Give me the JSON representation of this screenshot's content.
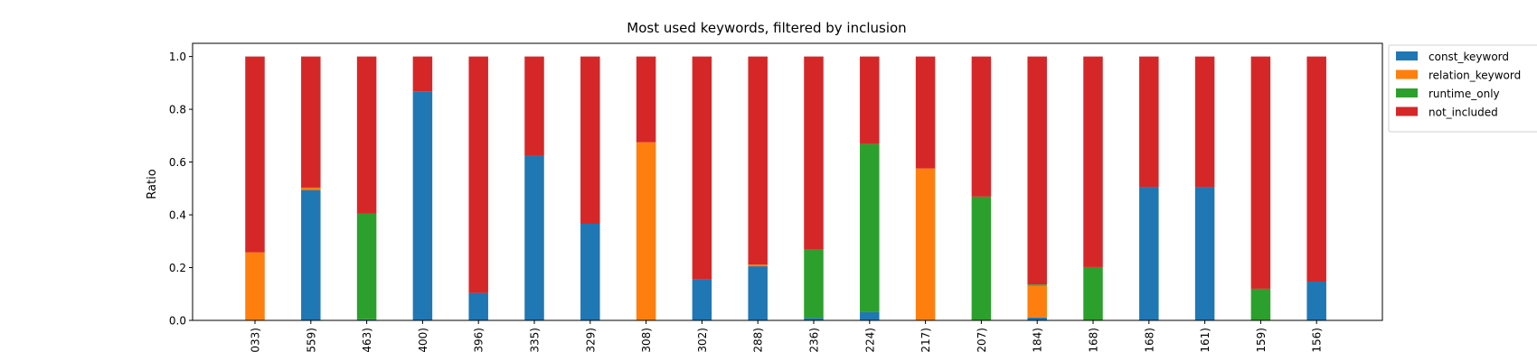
{
  "chart_data": {
    "type": "bar",
    "stacked": true,
    "title": "Most used keywords, filtered by inclusion",
    "xlabel": "",
    "ylabel": "Ratio",
    "ylim": [
      0,
      1.05
    ],
    "yticks": [
      "0.0",
      "0.2",
      "0.4",
      "0.6",
      "0.8",
      "1.0"
    ],
    "categories": [
      "033)",
      "559)",
      "463)",
      "400)",
      "396)",
      "335)",
      "329)",
      "308)",
      "302)",
      "288)",
      "236)",
      "224)",
      "217)",
      "207)",
      "184)",
      "168)",
      "168)",
      "161)",
      "159)",
      "156)"
    ],
    "legend_position": "outside-top-right",
    "series": [
      {
        "name": "const_keyword",
        "color": "#1f77b4",
        "values": [
          0.0,
          0.494,
          0.004,
          0.868,
          0.104,
          0.624,
          0.366,
          0.0,
          0.156,
          0.205,
          0.009,
          0.031,
          0.0,
          0.0,
          0.011,
          0.0,
          0.506,
          0.506,
          0.0,
          0.147
        ]
      },
      {
        "name": "relation_keyword",
        "color": "#ff7f0e",
        "values": [
          0.258,
          0.009,
          0.0,
          0.0,
          0.0,
          0.0,
          0.0,
          0.675,
          0.0,
          0.007,
          0.0,
          0.0,
          0.576,
          0.0,
          0.12,
          0.0,
          0.0,
          0.0,
          0.0,
          0.0
        ]
      },
      {
        "name": "runtime_only",
        "color": "#2ca02c",
        "values": [
          0.0,
          0.0,
          0.4,
          0.0,
          0.0,
          0.0,
          0.0,
          0.0,
          0.0,
          0.0,
          0.259,
          0.638,
          0.0,
          0.469,
          0.005,
          0.202,
          0.0,
          0.0,
          0.12,
          0.0
        ]
      },
      {
        "name": "not_included",
        "color": "#d62728",
        "values": [
          0.742,
          0.497,
          0.596,
          0.132,
          0.896,
          0.376,
          0.634,
          0.325,
          0.844,
          0.788,
          0.732,
          0.331,
          0.424,
          0.531,
          0.864,
          0.798,
          0.494,
          0.494,
          0.88,
          0.853
        ]
      }
    ]
  }
}
